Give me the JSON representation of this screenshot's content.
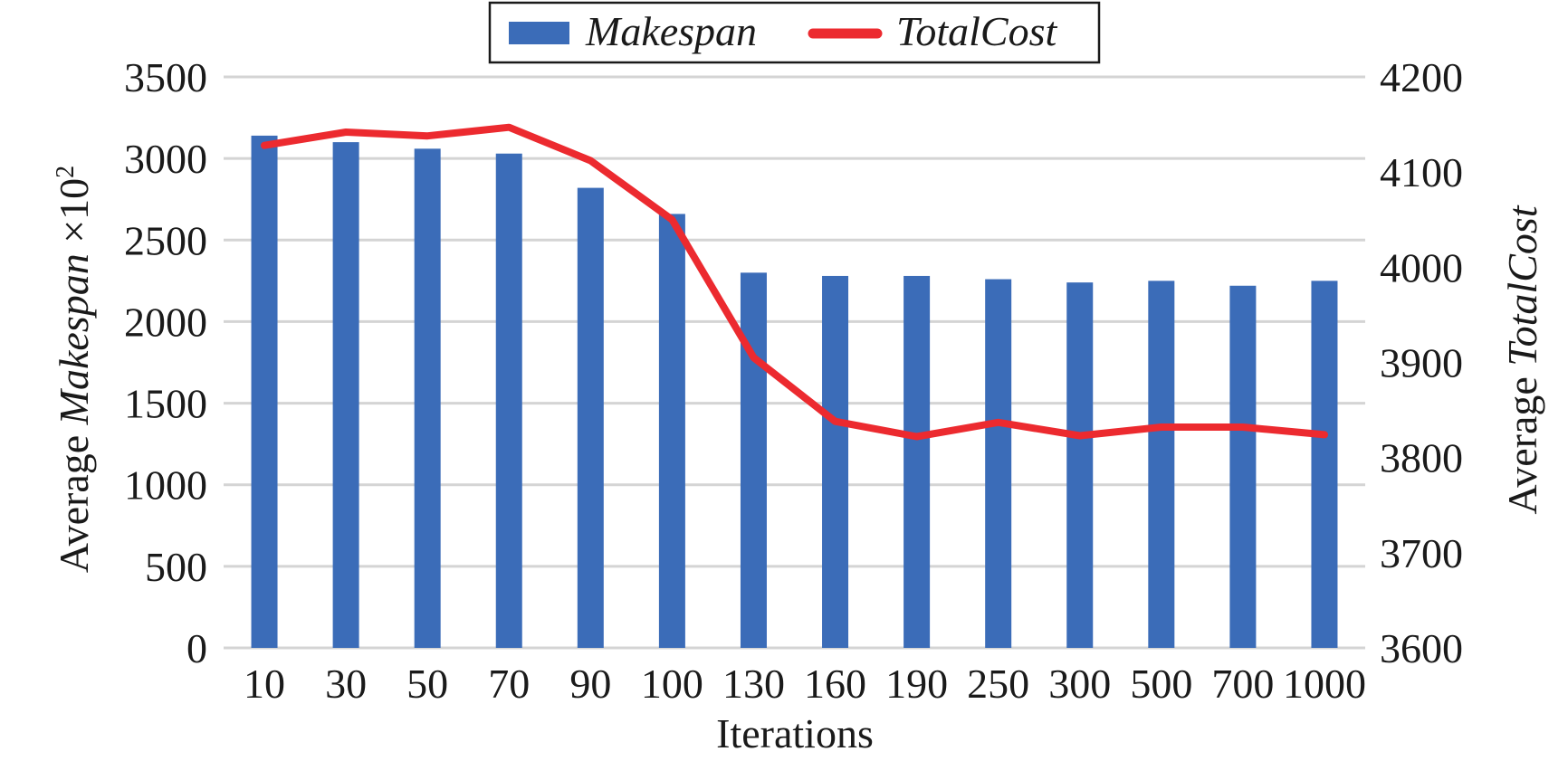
{
  "chart_data": {
    "type": "bar",
    "categories": [
      "10",
      "30",
      "50",
      "70",
      "90",
      "100",
      "130",
      "160",
      "190",
      "250",
      "300",
      "500",
      "700",
      "1000"
    ],
    "series": [
      {
        "name": "Makespan",
        "type": "bar",
        "axis": "left",
        "color": "#3b6cb8",
        "values": [
          3140,
          3100,
          3060,
          3030,
          2820,
          2660,
          2300,
          2280,
          2280,
          2260,
          2240,
          2250,
          2220,
          2250
        ]
      },
      {
        "name": "TotalCost",
        "type": "line",
        "axis": "right",
        "color": "#ec2a2f",
        "values": [
          4128,
          4142,
          4138,
          4147,
          4112,
          4050,
          3905,
          3838,
          3822,
          3837,
          3823,
          3832,
          3832,
          3824
        ]
      }
    ],
    "xlabel": "Iterations",
    "ylabel_left": {
      "prefix": "Average ",
      "italic": "Makespan",
      "suffix": " ×10",
      "sup": "2"
    },
    "ylabel_right": {
      "prefix": "Average ",
      "italic": "TotalCost"
    },
    "ylim_left": [
      0,
      3500
    ],
    "yticks_left": [
      0,
      500,
      1000,
      1500,
      2000,
      2500,
      3000,
      3500
    ],
    "ylim_right": [
      3600,
      4200
    ],
    "yticks_right": [
      3600,
      3700,
      3800,
      3900,
      4000,
      4100,
      4200
    ],
    "grid": true,
    "legend_position": "top-center"
  }
}
